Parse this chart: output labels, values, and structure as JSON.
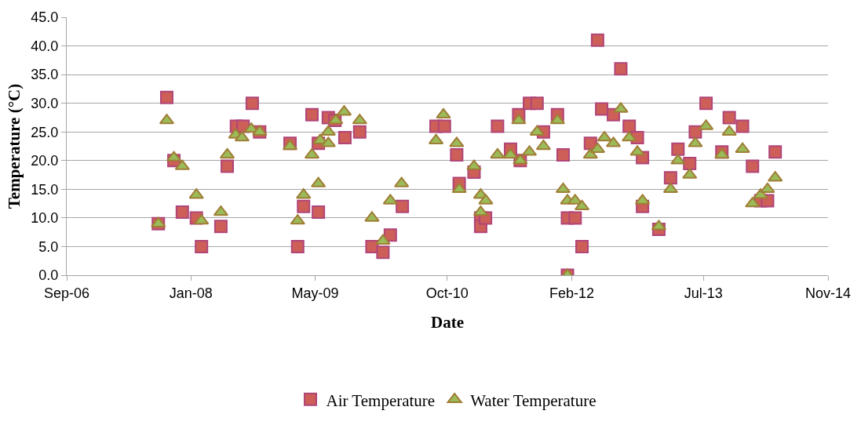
{
  "chart_data": {
    "type": "scatter",
    "xlabel": "Date",
    "ylabel": "Temperature (°C)",
    "xlim": [
      "2006-09-01",
      "2014-11-01"
    ],
    "xticks": [
      {
        "value": "2006-09-01",
        "label": "Sep-06"
      },
      {
        "value": "2008-01-01",
        "label": "Jan-08"
      },
      {
        "value": "2009-05-01",
        "label": "May-09"
      },
      {
        "value": "2010-10-01",
        "label": "Oct-10"
      },
      {
        "value": "2012-02-01",
        "label": "Feb-12"
      },
      {
        "value": "2013-07-01",
        "label": "Jul-13"
      },
      {
        "value": "2014-11-01",
        "label": "Nov-14"
      }
    ],
    "ylim": [
      0,
      45
    ],
    "yticks": [
      {
        "value": 0,
        "label": "0.0"
      },
      {
        "value": 5,
        "label": "5.0"
      },
      {
        "value": 10,
        "label": "10.0"
      },
      {
        "value": 15,
        "label": "15.0"
      },
      {
        "value": 20,
        "label": "20.0"
      },
      {
        "value": 25,
        "label": "25.0"
      },
      {
        "value": 30,
        "label": "30.0"
      },
      {
        "value": 35,
        "label": "35.0"
      },
      {
        "value": 40,
        "label": "40.0"
      },
      {
        "value": 45,
        "label": "45.0"
      }
    ],
    "grid": "y",
    "legend": "bottom",
    "series": [
      {
        "name": "Air Temperature",
        "color": "#cd5f58",
        "marker": "square",
        "x": [
          "2007-08-26",
          "2007-09-28",
          "2007-10-26",
          "2007-11-28",
          "2008-01-22",
          "2008-02-11",
          "2008-04-27",
          "2008-05-22",
          "2008-06-27",
          "2008-07-23",
          "2008-08-28",
          "2008-09-26",
          "2009-01-23",
          "2009-02-22",
          "2009-03-17",
          "2009-04-19",
          "2009-05-14",
          "2009-05-14",
          "2009-06-22",
          "2009-07-18",
          "2009-08-26",
          "2009-10-23",
          "2009-12-10",
          "2010-01-22",
          "2010-02-20",
          "2010-04-08",
          "2010-08-18",
          "2010-09-20",
          "2010-11-07",
          "2010-11-17",
          "2011-01-14",
          "2011-02-09",
          "2011-02-09",
          "2011-02-28",
          "2011-04-16",
          "2011-06-06",
          "2011-07-08",
          "2011-07-14",
          "2011-08-19",
          "2011-09-18",
          "2011-10-13",
          "2011-12-07",
          "2011-12-29",
          "2012-01-15",
          "2012-01-15",
          "2012-02-14",
          "2012-03-12",
          "2012-04-14",
          "2012-05-12",
          "2012-05-28",
          "2012-07-13",
          "2012-08-11",
          "2012-09-13",
          "2012-10-15",
          "2012-11-04",
          "2012-11-04",
          "2013-01-07",
          "2013-02-22",
          "2013-03-23",
          "2013-05-08",
          "2013-05-30",
          "2013-07-11",
          "2013-09-11",
          "2013-10-10",
          "2013-12-01",
          "2014-01-09",
          "2014-02-10",
          "2014-03-09",
          "2014-04-08"
        ],
        "values": [
          9,
          31,
          20,
          11,
          10,
          5,
          8.5,
          19,
          26,
          26,
          30,
          25,
          23,
          5,
          12,
          28,
          23,
          11,
          27.5,
          27,
          24,
          25,
          5,
          4,
          7,
          12,
          26,
          26,
          21,
          16,
          18,
          10,
          8.5,
          10,
          26,
          22,
          28,
          20,
          30,
          30,
          25,
          28,
          21,
          10,
          0,
          10,
          5,
          23,
          41,
          29,
          28,
          36,
          26,
          24,
          20.5,
          12,
          8,
          17,
          22,
          19.5,
          25,
          30,
          21.5,
          27.5,
          26,
          19,
          13,
          13,
          21.5
        ]
      },
      {
        "name": "Water Temperature",
        "color": "#9bbb59",
        "marker": "triangle",
        "x": [
          "2007-08-26",
          "2007-09-28",
          "2007-10-26",
          "2007-11-28",
          "2008-01-22",
          "2008-02-11",
          "2008-04-27",
          "2008-05-22",
          "2008-06-24",
          "2008-07-19",
          "2008-08-24",
          "2008-09-26",
          "2009-01-23",
          "2009-02-22",
          "2009-03-17",
          "2009-04-19",
          "2009-05-14",
          "2009-05-21",
          "2009-06-22",
          "2009-06-22",
          "2009-07-21",
          "2009-08-23",
          "2009-10-23",
          "2009-12-10",
          "2010-01-22",
          "2010-02-20",
          "2010-04-05",
          "2010-08-18",
          "2010-09-16",
          "2010-11-07",
          "2010-11-17",
          "2011-01-14",
          "2011-02-09",
          "2011-03-01",
          "2011-02-09",
          "2011-04-16",
          "2011-06-06",
          "2011-07-14",
          "2011-08-19",
          "2011-07-08",
          "2011-09-18",
          "2011-10-13",
          "2011-12-07",
          "2011-12-29",
          "2012-01-15",
          "2012-02-14",
          "2012-03-12",
          "2012-01-15",
          "2012-04-14",
          "2012-05-12",
          "2012-06-08",
          "2012-07-13",
          "2012-08-11",
          "2012-09-13",
          "2012-10-15",
          "2012-11-04",
          "2013-01-07",
          "2013-02-22",
          "2013-03-23",
          "2013-05-08",
          "2013-05-30",
          "2013-07-11",
          "2013-09-11",
          "2013-10-10",
          "2013-12-01",
          "2014-01-09",
          "2014-02-10",
          "2014-03-09",
          "2014-04-08"
        ],
        "values": [
          9,
          27,
          20.5,
          19,
          14,
          9.5,
          11,
          21,
          24.5,
          24,
          25.5,
          25,
          22.5,
          9.5,
          14,
          21,
          16,
          23.5,
          23,
          25,
          27,
          28.5,
          27,
          10,
          6,
          13,
          16,
          23.5,
          28,
          23,
          15,
          19,
          14,
          13,
          11,
          21,
          21,
          20,
          21.5,
          27,
          25,
          22.5,
          27,
          15,
          13,
          13,
          12,
          0,
          21,
          22,
          24,
          23,
          29,
          24,
          21.5,
          13,
          8.5,
          15,
          20,
          17.5,
          23,
          26,
          21,
          25,
          22,
          12.5,
          14,
          15,
          17
        ]
      }
    ]
  }
}
